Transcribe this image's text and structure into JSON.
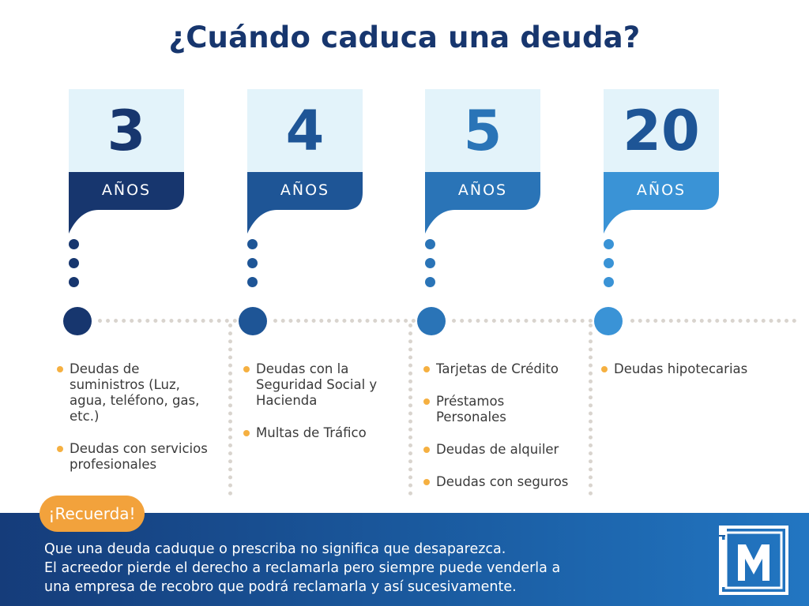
{
  "title": "¿Cuándo caduca una deuda?",
  "columns": [
    {
      "number": "3",
      "unit": "AÑOS",
      "color": "#17366e",
      "items": [
        "Deudas de suministros (Luz, agua, teléfono, gas, etc.)",
        "Deudas con servicios profesionales"
      ]
    },
    {
      "number": "4",
      "unit": "AÑOS",
      "color": "#1e5596",
      "items": [
        "Deudas con la Seguridad Social y Hacienda",
        "Multas de Tráfico"
      ]
    },
    {
      "number": "5",
      "unit": "AÑOS",
      "color": "#2a74b7",
      "items": [
        "Tarjetas de Crédito",
        "Préstamos Personales",
        "Deudas de alquiler",
        "Deudas con seguros"
      ]
    },
    {
      "number": "20",
      "unit": "AÑOS",
      "color": "#3a93d6",
      "items": [
        "Deudas hipotecarias"
      ]
    }
  ],
  "reminder": {
    "badge": "¡Recuerda!",
    "lines": [
      "Que una deuda caduque o prescriba no significa que desaparezca.",
      "El acreedor pierde el derecho a reclamarla pero siempre puede venderla a",
      "una empresa de recobro que podrá reclamarla y así sucesivamente."
    ]
  },
  "logo": {
    "text": "IM",
    "icon": "company-logo-icon"
  },
  "colors": {
    "title": "#17366e",
    "bullet": "#f5b041",
    "badge": "#f2a23c",
    "numbox_bg": "#e3f3fa",
    "footer": "#1b5ea4"
  }
}
